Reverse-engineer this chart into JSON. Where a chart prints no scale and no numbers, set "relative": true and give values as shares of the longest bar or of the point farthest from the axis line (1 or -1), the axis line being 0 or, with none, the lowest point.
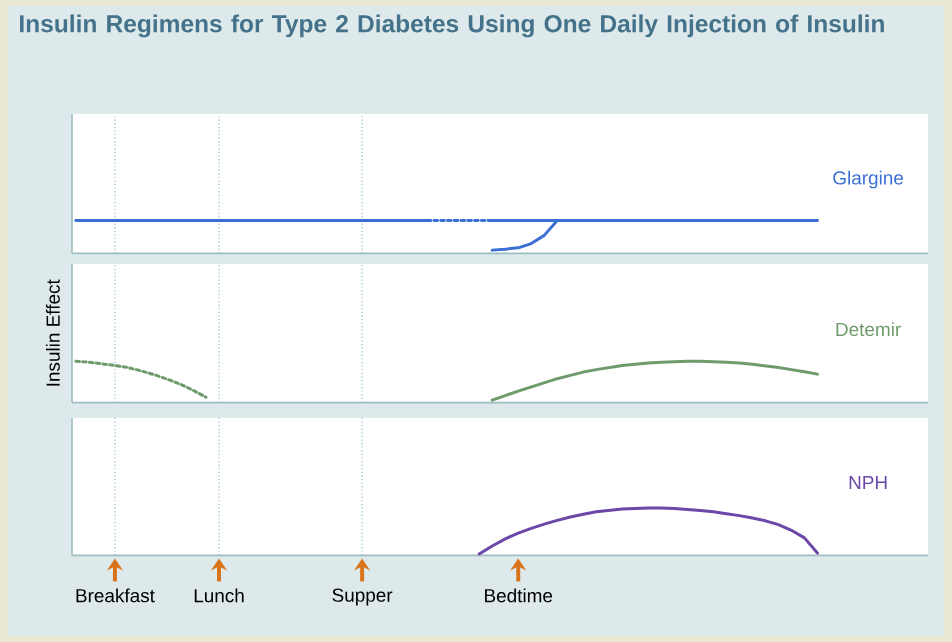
{
  "chart_data": [
    {
      "type": "line",
      "title": "Insulin Regimens for Type 2 Diabetes Using One Daily Injection of Insulin",
      "relative": true,
      "tick_labels": false,
      "categories": [
        null,
        null,
        null,
        "Breakfast",
        null,
        null,
        null,
        null,
        null,
        null,
        null,
        "Lunch",
        null,
        null,
        null,
        null,
        null,
        null,
        null,
        null,
        null,
        null,
        "Supper",
        null,
        null,
        null,
        null,
        null,
        null,
        null,
        null,
        null,
        null,
        null,
        "Bedtime",
        null,
        null,
        null,
        null,
        null,
        null,
        null,
        null,
        null,
        null,
        null,
        null,
        null,
        null,
        null,
        null,
        null,
        null,
        null,
        null,
        null,
        null,
        null,
        null,
        null,
        null,
        null,
        null,
        null,
        null,
        null
      ],
      "ref_lines": [
        {
          "axis": "x",
          "value": "Breakfast",
          "color": "#8cbcc4",
          "line_style": "dotted"
        },
        {
          "axis": "x",
          "value": "Lunch",
          "color": "#8cbcc4",
          "line_style": "dotted"
        },
        {
          "axis": "x",
          "value": "Supper",
          "color": "#8cbcc4",
          "line_style": "dotted"
        }
      ],
      "series": [
        {
          "name": "Glargine",
          "color": "#3b6fd4",
          "line_style": "solid",
          "values": [
            1,
            1,
            1,
            1,
            1,
            1,
            1,
            1,
            1,
            1,
            1,
            1,
            1,
            1,
            1,
            1,
            1,
            1,
            1,
            1,
            1,
            1,
            1,
            1,
            1,
            1,
            1,
            1,
            null,
            null,
            null,
            null,
            null,
            null,
            null,
            null,
            null,
            null,
            null,
            null,
            null,
            null,
            null,
            null,
            null,
            null,
            null,
            null,
            null,
            null,
            null,
            null,
            null,
            null,
            null,
            null,
            null,
            null,
            null,
            null,
            null,
            null,
            null,
            null,
            null,
            null
          ]
        },
        {
          "color": "#3b6fd4",
          "line_style": "dotted",
          "values": [
            null,
            null,
            null,
            null,
            null,
            null,
            null,
            null,
            null,
            null,
            null,
            null,
            null,
            null,
            null,
            null,
            null,
            null,
            null,
            null,
            null,
            null,
            null,
            null,
            null,
            null,
            null,
            1,
            1,
            1,
            1,
            1,
            1,
            null,
            null,
            null,
            null,
            null,
            null,
            null,
            null,
            null,
            null,
            null,
            null,
            null,
            null,
            null,
            null,
            null,
            null,
            null,
            null,
            null,
            null,
            null,
            null,
            null,
            null,
            null,
            null,
            null,
            null,
            null,
            null,
            null
          ]
        },
        {
          "color": "#3b6fd4",
          "line_style": "solid",
          "values": [
            null,
            null,
            null,
            null,
            null,
            null,
            null,
            null,
            null,
            null,
            null,
            null,
            null,
            null,
            null,
            null,
            null,
            null,
            null,
            null,
            null,
            null,
            null,
            null,
            null,
            null,
            null,
            null,
            null,
            null,
            null,
            null,
            1,
            1,
            1,
            1,
            1,
            1,
            1,
            1,
            1,
            1,
            1,
            1,
            1,
            1,
            1,
            1,
            1,
            1,
            1,
            1,
            1,
            1,
            1,
            1,
            1,
            1,
            null,
            null,
            null,
            null,
            null,
            null,
            null,
            null
          ]
        },
        {
          "color": "#3b6fd4",
          "line_style": "solid",
          "values": [
            null,
            null,
            null,
            null,
            null,
            null,
            null,
            null,
            null,
            null,
            null,
            null,
            null,
            null,
            null,
            null,
            null,
            null,
            null,
            null,
            null,
            null,
            null,
            null,
            null,
            null,
            null,
            null,
            null,
            null,
            null,
            null,
            0.1,
            0.13,
            0.17,
            0.3,
            0.55,
            1,
            null,
            null,
            null,
            null,
            null,
            null,
            null,
            null,
            null,
            null,
            null,
            null,
            null,
            null,
            null,
            null,
            null,
            null,
            null,
            null,
            null,
            null,
            null,
            null,
            null,
            null,
            null,
            null
          ]
        }
      ]
    },
    {
      "type": "line",
      "ylabel": "Insulin Effect",
      "relative": true,
      "tick_labels": false,
      "categories": [
        null,
        null,
        null,
        "Breakfast",
        null,
        null,
        null,
        null,
        null,
        null,
        null,
        "Lunch",
        null,
        null,
        null,
        null,
        null,
        null,
        null,
        null,
        null,
        null,
        "Supper",
        null,
        null,
        null,
        null,
        null,
        null,
        null,
        null,
        null,
        null,
        null,
        "Bedtime",
        null,
        null,
        null,
        null,
        null,
        null,
        null,
        null,
        null,
        null,
        null,
        null,
        null,
        null,
        null,
        null,
        null,
        null,
        null,
        null,
        null,
        null,
        null,
        null,
        null,
        null,
        null,
        null,
        null,
        null,
        null
      ],
      "ref_lines": [
        {
          "axis": "x",
          "value": "Breakfast",
          "color": "#8cbcc4",
          "line_style": "dotted"
        },
        {
          "axis": "x",
          "value": "Lunch",
          "color": "#8cbcc4",
          "line_style": "dotted"
        },
        {
          "axis": "x",
          "value": "Supper",
          "color": "#8cbcc4",
          "line_style": "dotted"
        }
      ],
      "series": [
        {
          "name": "Detemir",
          "color": "#6f9a6c",
          "line_style": "solid",
          "values": [
            null,
            null,
            null,
            null,
            null,
            null,
            null,
            null,
            null,
            null,
            null,
            null,
            null,
            null,
            null,
            null,
            null,
            null,
            null,
            null,
            null,
            null,
            null,
            null,
            null,
            null,
            null,
            null,
            null,
            null,
            null,
            null,
            0.06,
            0.17,
            0.28,
            0.38,
            0.48,
            0.58,
            0.66,
            0.74,
            0.8,
            0.85,
            0.9,
            0.93,
            0.96,
            0.98,
            0.99,
            1,
            1,
            0.99,
            0.98,
            0.96,
            0.93,
            0.89,
            0.85,
            0.8,
            0.75,
            0.69,
            null,
            null,
            null,
            null,
            null,
            null,
            null,
            null
          ]
        },
        {
          "color": "#6f9a6c",
          "line_style": "dotted",
          "values": [
            1,
            0.98,
            0.94,
            0.9,
            0.85,
            0.77,
            0.68,
            0.57,
            0.45,
            0.3,
            0.13,
            null,
            null,
            null,
            null,
            null,
            null,
            null,
            null,
            null,
            null,
            null,
            null,
            null,
            null,
            null,
            null,
            null,
            null,
            null,
            null,
            null,
            null,
            null,
            null,
            null,
            null,
            null,
            null,
            null,
            null,
            null,
            null,
            null,
            null,
            null,
            null,
            null,
            null,
            null,
            null,
            null,
            null,
            null,
            null,
            null,
            null,
            null,
            null,
            null,
            null,
            null,
            null,
            null,
            null,
            null
          ]
        }
      ]
    },
    {
      "type": "line",
      "relative": true,
      "tick_labels": "x",
      "categories": [
        null,
        null,
        null,
        "Breakfast",
        null,
        null,
        null,
        null,
        null,
        null,
        null,
        "Lunch",
        null,
        null,
        null,
        null,
        null,
        null,
        null,
        null,
        null,
        null,
        "Supper",
        null,
        null,
        null,
        null,
        null,
        null,
        null,
        null,
        null,
        null,
        null,
        "Bedtime",
        null,
        null,
        null,
        null,
        null,
        null,
        null,
        null,
        null,
        null,
        null,
        null,
        null,
        null,
        null,
        null,
        null,
        null,
        null,
        null,
        null,
        null,
        null,
        null,
        null,
        null,
        null,
        null,
        null,
        null,
        null
      ],
      "ref_lines": [
        {
          "axis": "x",
          "value": "Breakfast",
          "color": "#8cbcc4",
          "line_style": "dotted"
        },
        {
          "axis": "x",
          "value": "Lunch",
          "color": "#8cbcc4",
          "line_style": "dotted"
        },
        {
          "axis": "x",
          "value": "Supper",
          "color": "#8cbcc4",
          "line_style": "dotted"
        }
      ],
      "series": [
        {
          "name": "NPH",
          "color": "#6b47a8",
          "line_style": "solid",
          "values": [
            null,
            null,
            null,
            null,
            null,
            null,
            null,
            null,
            null,
            null,
            null,
            null,
            null,
            null,
            null,
            null,
            null,
            null,
            null,
            null,
            null,
            null,
            null,
            null,
            null,
            null,
            null,
            null,
            null,
            null,
            null,
            0.03,
            0.2,
            0.35,
            0.47,
            0.57,
            0.66,
            0.74,
            0.81,
            0.87,
            0.92,
            0.95,
            0.98,
            0.99,
            1,
            1,
            0.99,
            0.97,
            0.95,
            0.92,
            0.88,
            0.84,
            0.79,
            0.73,
            0.65,
            0.53,
            0.37,
            0.05,
            null,
            null,
            null,
            null,
            null,
            null,
            null,
            null
          ]
        }
      ]
    }
  ]
}
